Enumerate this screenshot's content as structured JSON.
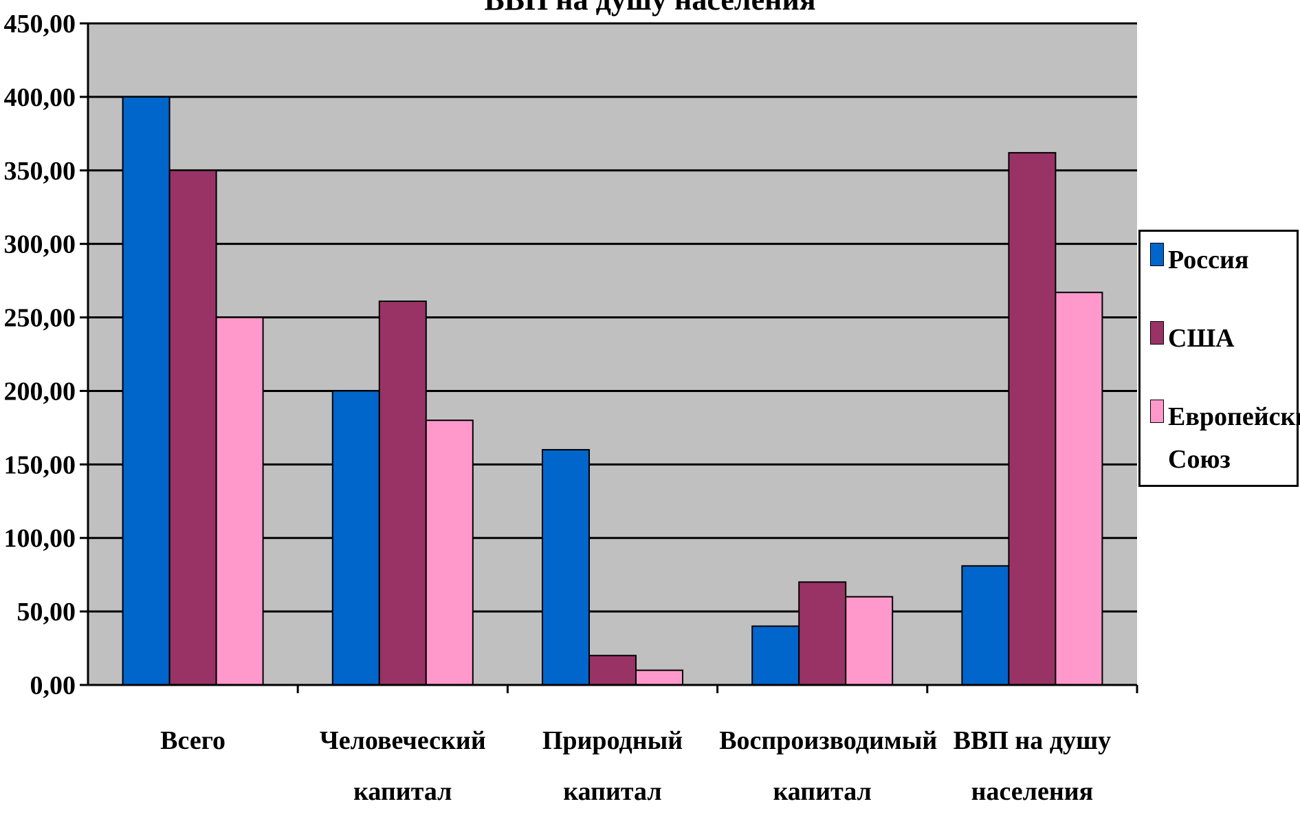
{
  "chart_data": {
    "type": "bar",
    "title": "ВВП на душу населения",
    "categories": [
      "Всего",
      "Человеческий капитал",
      "Природный капитал",
      "Воспроизводимый капитал",
      "ВВП на душу населения"
    ],
    "series": [
      {
        "name": "Россия",
        "color": "#0066CC",
        "values": [
          400,
          200,
          160,
          40,
          81
        ]
      },
      {
        "name": "США",
        "color": "#993366",
        "values": [
          350,
          261,
          20,
          70,
          362
        ]
      },
      {
        "name": "Европейский Союз",
        "color": "#FF99CC",
        "values": [
          250,
          180,
          10,
          60,
          267
        ]
      }
    ],
    "ylim": [
      0,
      450
    ],
    "yticks": [
      "0,00",
      "50,00",
      "100,00",
      "150,00",
      "200,00",
      "250,00",
      "300,00",
      "350,00",
      "400,00",
      "450,00"
    ],
    "grid": true,
    "plot_background": "#C0C0C0",
    "legend_position": "right"
  }
}
